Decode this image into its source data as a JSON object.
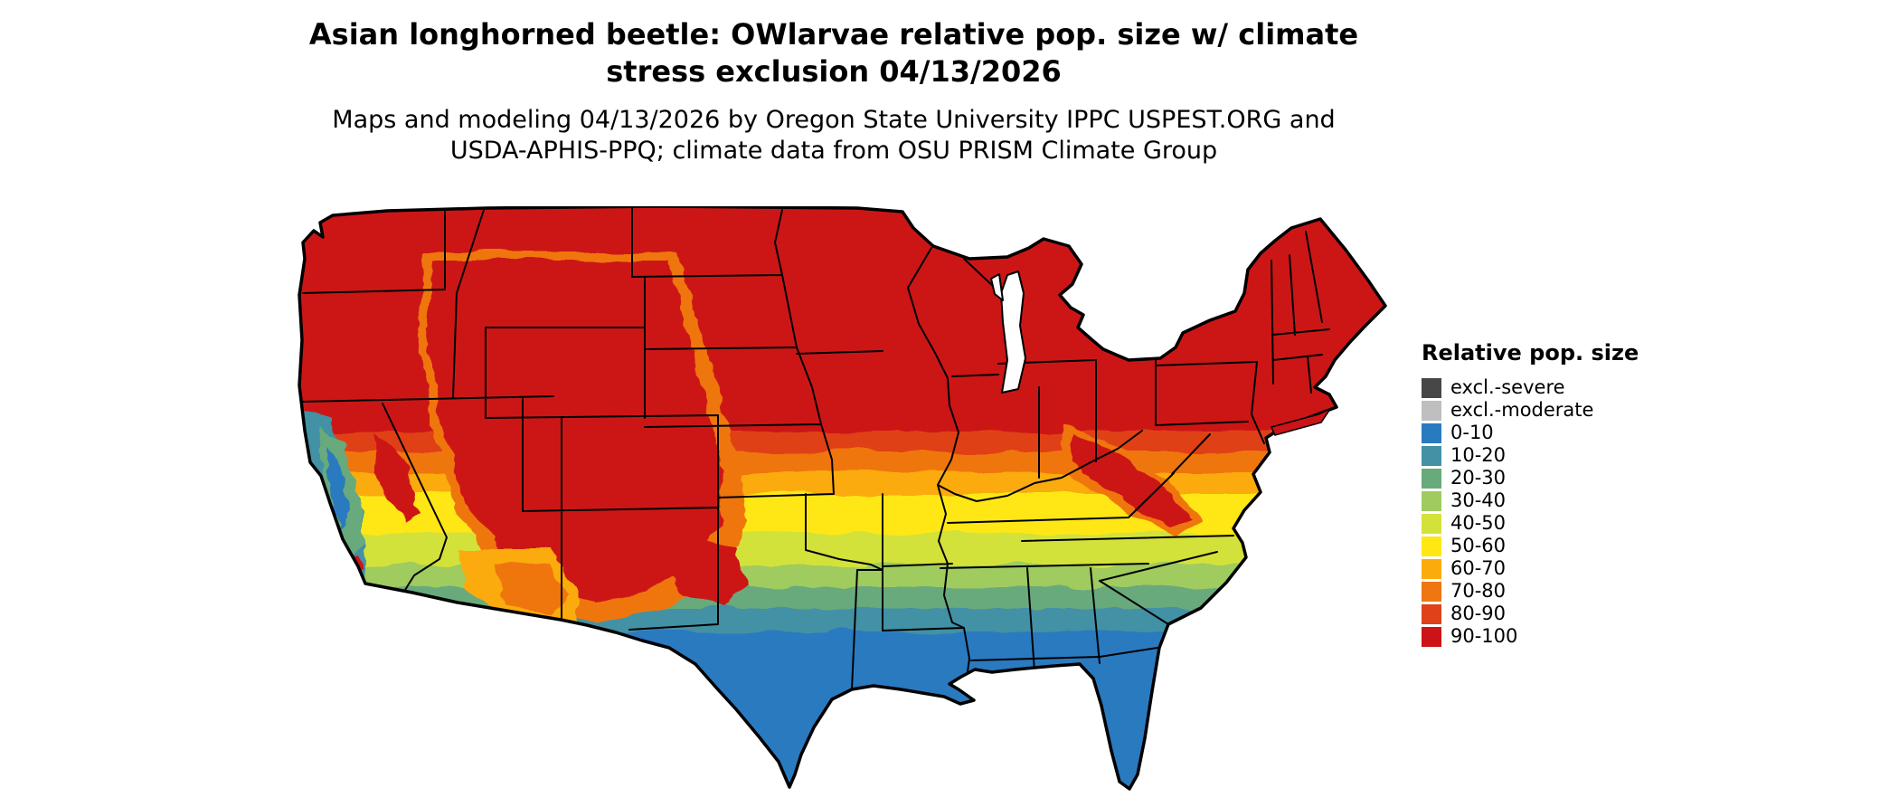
{
  "header": {
    "title_lines": [
      "Asian longhorned beetle: OWlarvae relative pop. size w/ climate",
      "stress exclusion 04/13/2026"
    ],
    "subtitle_lines": [
      "Maps and modeling 04/13/2026 by Oregon State University IPPC USPEST.ORG and",
      "USDA-APHIS-PPQ; climate data from OSU PRISM Climate Group"
    ]
  },
  "legend": {
    "title": "Relative pop. size",
    "entries": [
      {
        "label": "excl.-severe",
        "color": "#474747"
      },
      {
        "label": "excl.-moderate",
        "color": "#bfbfbf"
      },
      {
        "label": "0-10",
        "color": "#2a7ac0"
      },
      {
        "label": "10-20",
        "color": "#4391a5"
      },
      {
        "label": "20-30",
        "color": "#67aa7c"
      },
      {
        "label": "30-40",
        "color": "#9fcb5f"
      },
      {
        "label": "40-50",
        "color": "#d3e23a"
      },
      {
        "label": "50-60",
        "color": "#ffe714"
      },
      {
        "label": "60-70",
        "color": "#fbab0c"
      },
      {
        "label": "70-80",
        "color": "#ef7611"
      },
      {
        "label": "80-90",
        "color": "#e04119"
      },
      {
        "label": "90-100",
        "color": "#cc1318"
      }
    ]
  },
  "map": {
    "area": "contiguous United States",
    "pattern_north_to_south": [
      "90-100",
      "80-90",
      "70-80",
      "60-70",
      "50-60",
      "40-50",
      "30-40",
      "20-30",
      "10-20",
      "0-10"
    ],
    "outline_color": "#000000",
    "water_color": "#ffffff"
  }
}
